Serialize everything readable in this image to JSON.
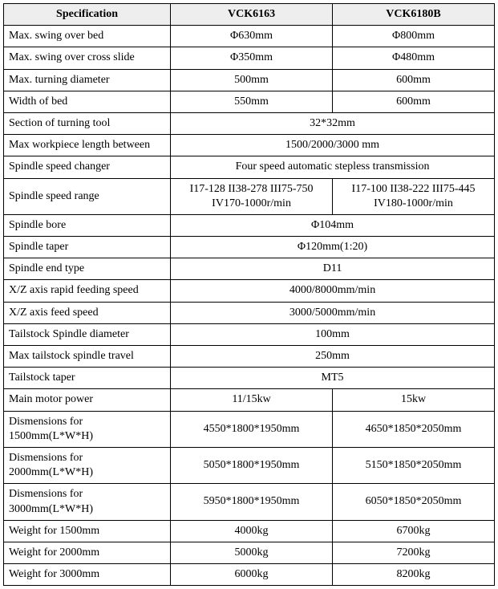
{
  "headers": {
    "spec": "Specification",
    "m1": "VCK6163",
    "m2": "VCK6180B"
  },
  "rows": [
    {
      "label": "Max. swing over bed",
      "v1": "Φ630mm",
      "v2": "Φ800mm"
    },
    {
      "label": "Max. swing over cross slide",
      "v1": "Φ350mm",
      "v2": "Φ480mm"
    },
    {
      "label": "Max. turning diameter",
      "v1": "500mm",
      "v2": "600mm"
    },
    {
      "label": "Width of bed",
      "v1": "550mm",
      "v2": "600mm"
    },
    {
      "label": "Section of turning tool",
      "merged": "32*32mm"
    },
    {
      "label": "Max workpiece length between",
      "merged": "1500/2000/3000 mm"
    },
    {
      "label": "Spindle speed changer",
      "merged": "Four speed automatic stepless transmission"
    },
    {
      "label": "Spindle speed range",
      "v1": "I17-128 II38-278 III75-750 IV170-1000r/min",
      "v2": "I17-100 II38-222 III75-445 IV180-1000r/min"
    },
    {
      "label": "Spindle bore",
      "merged": "Φ104mm"
    },
    {
      "label": "Spindle taper",
      "merged": "Φ120mm(1:20)"
    },
    {
      "label": "Spindle end type",
      "merged": "D11"
    },
    {
      "label": "X/Z axis rapid feeding speed",
      "merged": "4000/8000mm/min"
    },
    {
      "label": "X/Z axis feed speed",
      "merged": "3000/5000mm/min"
    },
    {
      "label": "Tailstock Spindle diameter",
      "merged": "100mm"
    },
    {
      "label": "Max tailstock spindle travel",
      "merged": "250mm"
    },
    {
      "label": "Tailstock taper",
      "merged": "MT5"
    },
    {
      "label": "Main motor power",
      "v1": "11/15kw",
      "v2": "15kw"
    },
    {
      "label": "Dismensions for 1500mm(L*W*H)",
      "v1": "4550*1800*1950mm",
      "v2": "4650*1850*2050mm"
    },
    {
      "label": "Dismensions for 2000mm(L*W*H)",
      "v1": "5050*1800*1950mm",
      "v2": "5150*1850*2050mm"
    },
    {
      "label": "Dismensions for 3000mm(L*W*H)",
      "v1": "5950*1800*1950mm",
      "v2": "6050*1850*2050mm"
    },
    {
      "label": "Weight for 1500mm",
      "v1": "4000kg",
      "v2": "6700kg"
    },
    {
      "label": "Weight for 2000mm",
      "v1": "5000kg",
      "v2": "7200kg"
    },
    {
      "label": "Weight for 3000mm",
      "v1": "6000kg",
      "v2": "8200kg"
    }
  ]
}
